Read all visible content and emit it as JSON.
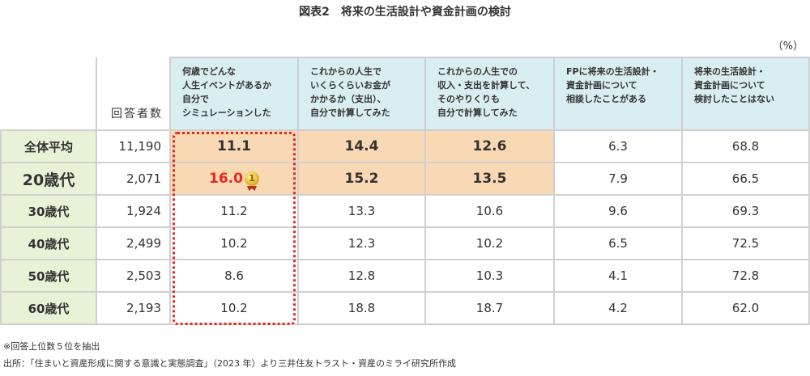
{
  "title": "図表2　将来の生活設計や資金計画の検討",
  "unit": "（%）",
  "chart_data": {
    "type": "table",
    "count_header": "回答者数",
    "columns": [
      "何歳でどんな\n人生イベントがあるか\n自分で\nシミュレーションした",
      "これからの人生で\nいくらくらいお金が\nかかるか（支出）、\n自分で計算してみた",
      "これからの人生での\n収入・支出を計算して、\nそのやりくりも\n自分で計算してみた",
      "FPに将来の生活設計・\n資金計画について\n相談したことがある",
      "将来の生活設計・\n資金計画について\n検討したことはない"
    ],
    "rows": [
      {
        "label": "全体平均",
        "count": "11,190",
        "values": [
          "11.1",
          "14.4",
          "12.6",
          "6.3",
          "68.8"
        ]
      },
      {
        "label": "20歳代",
        "count": "2,071",
        "values": [
          "16.0",
          "15.2",
          "13.5",
          "7.9",
          "66.5"
        ]
      },
      {
        "label": "30歳代",
        "count": "1,924",
        "values": [
          "11.2",
          "13.3",
          "10.6",
          "9.6",
          "69.3"
        ]
      },
      {
        "label": "40歳代",
        "count": "2,499",
        "values": [
          "10.2",
          "12.3",
          "10.2",
          "6.5",
          "72.5"
        ]
      },
      {
        "label": "50歳代",
        "count": "2,503",
        "values": [
          "8.6",
          "12.8",
          "10.3",
          "4.1",
          "72.8"
        ]
      },
      {
        "label": "60歳代",
        "count": "2,193",
        "values": [
          "10.2",
          "18.8",
          "18.7",
          "4.2",
          "62.0"
        ]
      }
    ],
    "medal_text": "1"
  },
  "notes": [
    "※回答上位数５位を抽出",
    "出所：「住まいと資産形成に関する意識と実態調査」（2023 年）より三井住友トラスト・資産のミライ研究所作成"
  ],
  "colors": {
    "header": "#d9eef0",
    "label": "#e8f2d6",
    "highlight": "#f9d8b4",
    "accent": "#e8281e"
  }
}
